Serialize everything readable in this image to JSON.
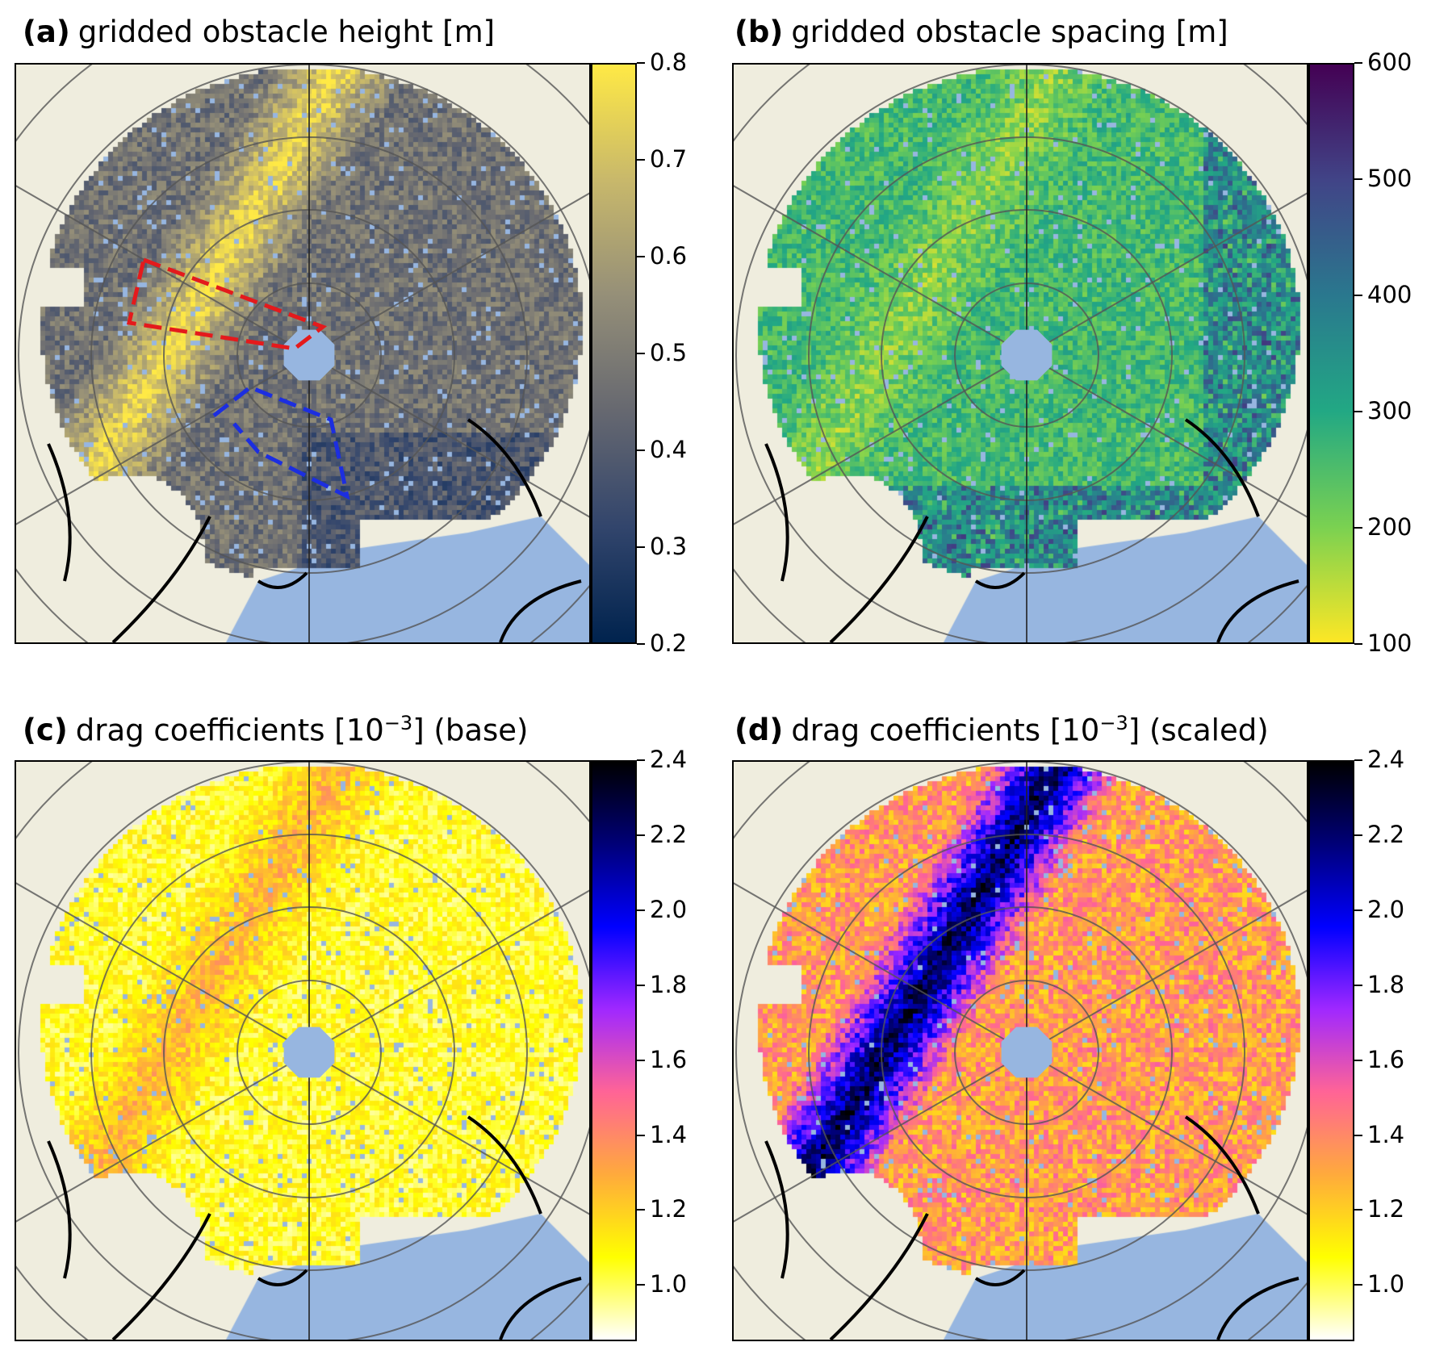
{
  "chart_data": [
    {
      "type": "heatmap",
      "panel": "(a)",
      "title": "gridded obstacle height [m]",
      "colormap": "cividis",
      "clim": [
        0.2,
        0.8
      ],
      "colorbar_ticks": [
        "0.2",
        "0.3",
        "0.4",
        "0.5",
        "0.6",
        "0.7",
        "0.8"
      ],
      "projection": "north polar stereographic",
      "annotations": [
        "red dashed polygon",
        "blue dashed polygon"
      ]
    },
    {
      "type": "heatmap",
      "panel": "(b)",
      "title": "gridded obstacle spacing [m]",
      "colormap": "viridis_r",
      "clim": [
        100,
        600
      ],
      "colorbar_ticks": [
        "100",
        "200",
        "300",
        "400",
        "500",
        "600"
      ],
      "projection": "north polar stereographic"
    },
    {
      "type": "heatmap",
      "panel": "(c)",
      "title": "drag coefficients [10",
      "title_sup": "−3",
      "title_end": "] (base)",
      "colormap": "gnuplot2_r",
      "clim": [
        0.85,
        2.4
      ],
      "colorbar_ticks": [
        "1.0",
        "1.2",
        "1.4",
        "1.6",
        "1.8",
        "2.0",
        "2.2",
        "2.4"
      ],
      "projection": "north polar stereographic"
    },
    {
      "type": "heatmap",
      "panel": "(d)",
      "title": "drag coefficients [10",
      "title_sup": "−3",
      "title_end": "] (scaled)",
      "colormap": "gnuplot2_r",
      "clim": [
        0.85,
        2.4
      ],
      "colorbar_ticks": [
        "1.0",
        "1.2",
        "1.4",
        "1.6",
        "1.8",
        "2.0",
        "2.2",
        "2.4"
      ],
      "projection": "north polar stereographic"
    }
  ],
  "colors": {
    "land": "#efedde",
    "ocean": "#97b6e0",
    "grid": "#555555"
  }
}
